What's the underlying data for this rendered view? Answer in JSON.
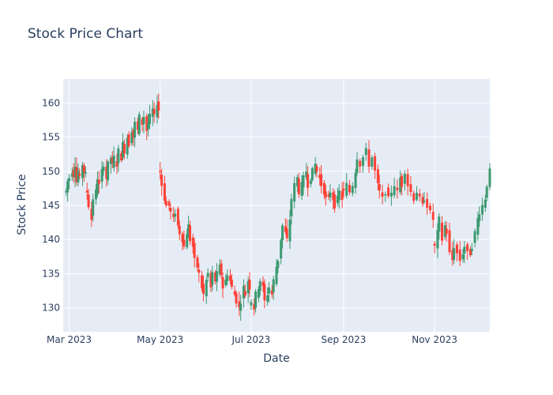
{
  "chart_data": {
    "type": "candlestick",
    "title": "Stock Price Chart",
    "xlabel": "Date",
    "ylabel": "Stock Price",
    "x_tick_labels": [
      "Mar 2023",
      "May 2023",
      "Jul 2023",
      "Sep 2023",
      "Nov 2023"
    ],
    "x_ticks": [
      "2023-03-01",
      "2023-05-01",
      "2023-07-01",
      "2023-09-01",
      "2023-11-01"
    ],
    "y_tick_labels": [
      "130",
      "135",
      "140",
      "145",
      "150",
      "155",
      "160"
    ],
    "x_range": [
      "2023-02-25",
      "2023-12-08"
    ],
    "ylim": [
      126.5,
      163.5
    ],
    "grid": true,
    "colors": {
      "increasing": "#3d9970",
      "decreasing": "#ff4136",
      "plot_bg": "#e5ecf6",
      "grid": "#ffffff",
      "text": "#2a3f5f"
    },
    "series_by_segment": [
      {
        "from": "2023-02-27",
        "to": "2023-03-12",
        "points": [
          147,
          148.5,
          149,
          150,
          149.5,
          151,
          148.5,
          150,
          149,
          151,
          150,
          149.5
        ]
      },
      {
        "from": "2023-03-13",
        "to": "2023-04-30",
        "points": [
          147,
          145,
          143,
          146,
          147,
          149,
          148,
          150,
          151,
          149,
          151,
          152,
          151,
          152,
          151,
          153,
          152,
          154,
          153,
          155,
          154,
          156,
          155,
          157,
          156,
          158,
          157,
          158,
          156,
          157,
          158,
          159,
          158,
          160,
          159
        ]
      },
      {
        "from": "2023-05-01",
        "to": "2023-06-30",
        "points": [
          150,
          148,
          146,
          145,
          145,
          144,
          143,
          144,
          142,
          141,
          140,
          139,
          141,
          142,
          140,
          139,
          137,
          136,
          135,
          133,
          132,
          134,
          135,
          133,
          135,
          134,
          135,
          136,
          135,
          133,
          134,
          135,
          134,
          133,
          132,
          131,
          130,
          131,
          133,
          132,
          134,
          133
        ]
      },
      {
        "from": "2023-07-01",
        "to": "2023-08-31",
        "points": [
          131,
          130,
          132,
          133,
          134,
          133,
          131,
          132,
          133,
          132,
          134,
          136,
          137,
          140,
          142,
          141,
          140,
          143,
          146,
          148,
          149,
          147,
          148,
          149,
          150,
          148,
          149,
          150,
          151,
          150,
          149,
          148,
          147,
          146,
          146,
          147,
          146,
          145,
          146,
          147,
          146
        ]
      },
      {
        "from": "2023-09-01",
        "to": "2023-10-31",
        "points": [
          147,
          148,
          147,
          148,
          150,
          152,
          151,
          152,
          153,
          151,
          152,
          150,
          148,
          147,
          146,
          147,
          146,
          147,
          148,
          147,
          149,
          148,
          150,
          148,
          147,
          146,
          147,
          146,
          145,
          146,
          145,
          144,
          143
        ]
      },
      {
        "from": "2023-11-01",
        "to": "2023-12-08",
        "points": [
          139,
          141,
          143,
          140,
          142,
          141,
          138,
          137,
          139,
          138,
          137,
          138,
          139,
          138,
          138,
          139,
          141,
          143,
          144,
          145,
          146,
          148,
          150
        ]
      }
    ]
  }
}
